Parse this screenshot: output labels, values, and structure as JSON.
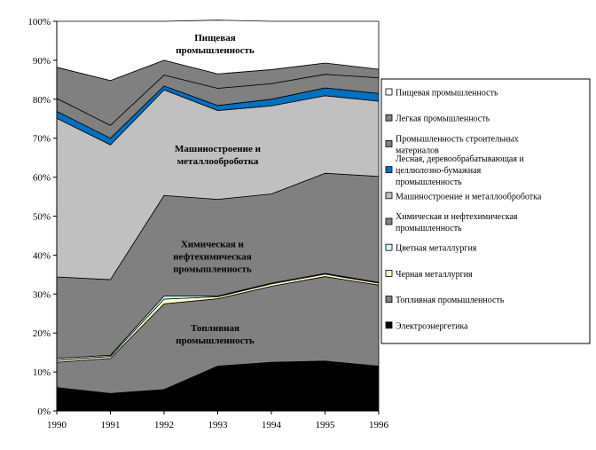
{
  "chart_data": {
    "type": "area",
    "stacked": true,
    "x": [
      1990,
      1991,
      1992,
      1993,
      1994,
      1995,
      1996
    ],
    "ylim": [
      0,
      100
    ],
    "y_ticks": [
      "0%",
      "10%",
      "20%",
      "30%",
      "40%",
      "50%",
      "60%",
      "70%",
      "80%",
      "90%",
      "100%"
    ],
    "grid": false,
    "legend_position": "right",
    "series": [
      {
        "name": "Электроэнергетика",
        "color": "#000000",
        "values": [
          6,
          4.5,
          5.5,
          11.5,
          12.5,
          12.8,
          11.5
        ]
      },
      {
        "name": "Топливная промышленность",
        "color": "#808080",
        "values": [
          6.5,
          9,
          22,
          17.3,
          19.5,
          21.7,
          20.8
        ]
      },
      {
        "name": "Черная металлургия",
        "color": "#ffffcc",
        "values": [
          0.5,
          0.5,
          1.2,
          0.5,
          0.6,
          0.6,
          0.5
        ]
      },
      {
        "name": "Цветная металлургия",
        "color": "#ccffff",
        "values": [
          0.5,
          0.3,
          0.8,
          0.2,
          0.2,
          0.2,
          0.2
        ]
      },
      {
        "name": "Химическая и нефтехимическая промышленность",
        "color": "#808080",
        "values": [
          20.9,
          19.4,
          25.8,
          24.8,
          22.9,
          25.7,
          27.2
        ]
      },
      {
        "name": "Машиностроение и металлооброботка",
        "color": "#c0c0c0",
        "values": [
          40.7,
          34.6,
          27.1,
          22.8,
          22.6,
          19.9,
          19.3
        ]
      },
      {
        "name": "Лесная, деревообрабатывающая и целлюлозно-бумажная промышленность",
        "color": "#0070c0",
        "values": [
          1.8,
          1.7,
          1.0,
          1.3,
          1.7,
          2.0,
          2.0
        ]
      },
      {
        "name": "Промышленность строительных материалов",
        "color": "#808080",
        "values": [
          3.3,
          3.3,
          2.8,
          4.4,
          4.0,
          3.5,
          4.0
        ]
      },
      {
        "name": "Легкая промышленность",
        "color": "#808080",
        "values": [
          8.0,
          11.5,
          3.8,
          3.7,
          3.6,
          2.9,
          2.2
        ]
      },
      {
        "name": "Пищевая промышленность",
        "color": "#ffffff",
        "values": [
          11.8,
          15.2,
          10.0,
          13.8,
          12.4,
          10.7,
          12.3
        ]
      }
    ],
    "annotations": [
      {
        "lines": [
          "Пищевая",
          "промышленность"
        ],
        "x": 1992.95,
        "y": 95
      },
      {
        "lines": [
          "Машиностроение и",
          "металлооброботка"
        ],
        "x": 1993.0,
        "y": 66.5
      },
      {
        "lines": [
          "Химическая и",
          "нефтехимическая",
          "промышленность"
        ],
        "x": 1992.9,
        "y": 42
      },
      {
        "lines": [
          "Топливная",
          "промышленность"
        ],
        "x": 1992.95,
        "y": 20.5
      }
    ]
  }
}
